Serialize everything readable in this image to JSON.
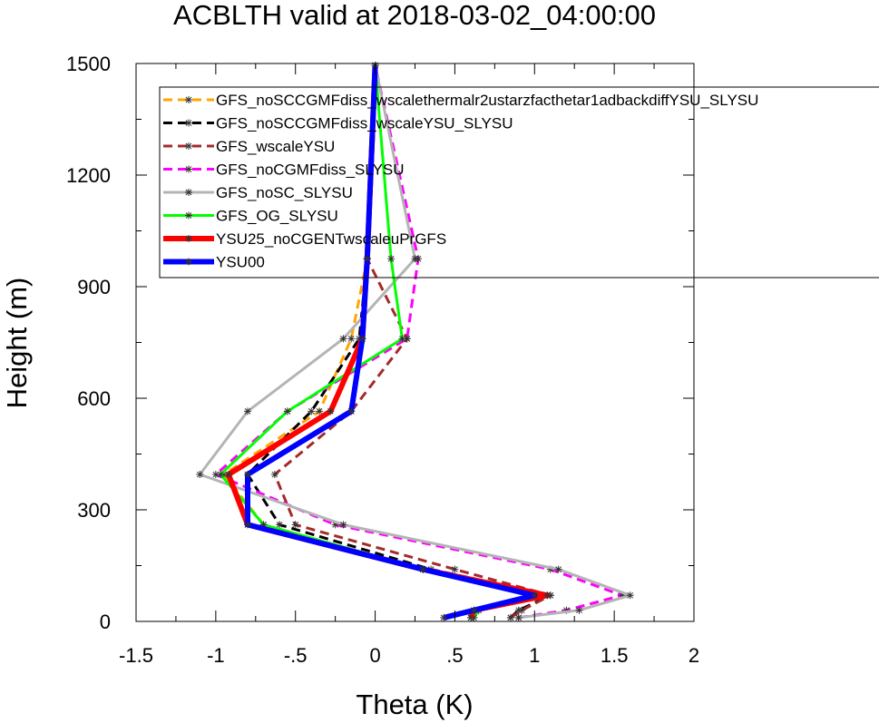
{
  "chart_data": {
    "type": "line",
    "title": "ACBLTH valid at 2018-03-02_04:00:00",
    "xlabel": "Theta (K)",
    "ylabel": "Height (m)",
    "xlim": [
      -1.5,
      2
    ],
    "ylim": [
      0,
      1500
    ],
    "xticks": [
      -1.5,
      -1,
      -0.5,
      0,
      0.5,
      1,
      1.5,
      2
    ],
    "xtick_labels": [
      "-1.5",
      "-1",
      "-.5",
      "0",
      ".5",
      "1",
      "1.5",
      "2"
    ],
    "yticks": [
      0,
      300,
      600,
      900,
      1200,
      1500
    ],
    "ytick_labels": [
      "0",
      "300",
      "600",
      "900",
      "1200",
      "1500"
    ],
    "grid": false,
    "legend_position": "upper-right",
    "heights": [
      10,
      30,
      70,
      140,
      260,
      395,
      565,
      760,
      975,
      1495
    ],
    "series": [
      {
        "name": "GFS_noSCCGMFdiss_wscalethermalr2ustarzfacthetar1adbackdiffYSU_SLYSU",
        "color": "#ffa500",
        "dash": "dash",
        "width": 3,
        "values": [
          0.6,
          0.65,
          1.05,
          0.3,
          -0.7,
          -0.95,
          -0.35,
          -0.15,
          -0.05,
          0.0
        ]
      },
      {
        "name": "GFS_noSCCGMFdiss_wscaleYSU_SLYSU",
        "color": "#000000",
        "dash": "dash",
        "width": 3,
        "values": [
          0.85,
          0.9,
          1.1,
          0.35,
          -0.6,
          -0.8,
          -0.4,
          -0.1,
          -0.05,
          0.0
        ]
      },
      {
        "name": "GFS_wscaleYSU",
        "color": "#a52a2a",
        "dash": "dash",
        "width": 3,
        "values": [
          0.85,
          0.92,
          1.1,
          0.5,
          -0.5,
          -0.63,
          -0.15,
          0.2,
          -0.05,
          0.0
        ]
      },
      {
        "name": "GFS_noCGMFdiss_SLYSU",
        "color": "#ff00ff",
        "dash": "dash",
        "width": 3,
        "values": [
          0.9,
          1.2,
          1.55,
          1.1,
          -0.25,
          -1.0,
          -0.55,
          0.2,
          0.27,
          0.0
        ]
      },
      {
        "name": "GFS_noSC_SLYSU",
        "color": "#b4b4b4",
        "dash": "solid",
        "width": 3,
        "values": [
          0.9,
          1.28,
          1.6,
          1.15,
          -0.2,
          -1.1,
          -0.8,
          -0.2,
          0.25,
          0.0
        ]
      },
      {
        "name": "GFS_OG_SLYSU",
        "color": "#00ff00",
        "dash": "solid",
        "width": 3,
        "values": [
          0.62,
          0.65,
          1.08,
          0.3,
          -0.7,
          -0.97,
          -0.55,
          0.17,
          0.1,
          0.0
        ]
      },
      {
        "name": "YSU25_noCGENTwscaleuPrGFS",
        "color": "#ff0000",
        "dash": "solid",
        "width": 6,
        "values": [
          0.6,
          0.62,
          1.08,
          0.3,
          -0.8,
          -0.92,
          -0.28,
          -0.08,
          -0.05,
          0.0
        ]
      },
      {
        "name": "YSU00",
        "color": "#0000ff",
        "dash": "solid",
        "width": 6,
        "values": [
          0.43,
          0.62,
          1.0,
          0.3,
          -0.8,
          -0.8,
          -0.15,
          -0.08,
          -0.05,
          0.0
        ]
      }
    ]
  }
}
